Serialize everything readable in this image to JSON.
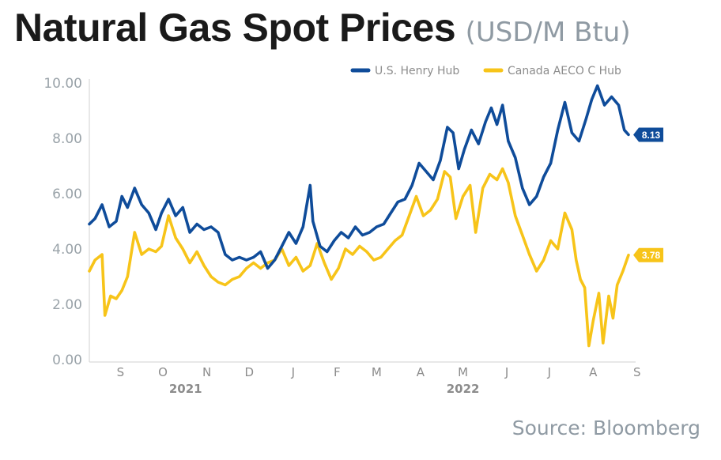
{
  "title": "Natural Gas Spot Prices",
  "subtitle": "(USD/M Btu)",
  "source": "Source: Bloomberg",
  "chart_data": {
    "type": "line",
    "ylim": [
      0,
      10
    ],
    "yticks": [
      "0.00",
      "2.00",
      "4.00",
      "6.00",
      "8.00",
      "10.00"
    ],
    "grid": false,
    "legend_position": "top-right",
    "x_start": "2021-08-24",
    "x_end": "2022-09-14",
    "xticks": [
      {
        "label": "S",
        "date": "2021-09-15"
      },
      {
        "label": "O",
        "date": "2021-10-15"
      },
      {
        "label": "N",
        "date": "2021-11-15"
      },
      {
        "label": "D",
        "date": "2021-12-15"
      },
      {
        "label": "J",
        "date": "2022-01-15"
      },
      {
        "label": "F",
        "date": "2022-02-15"
      },
      {
        "label": "M",
        "date": "2022-03-15"
      },
      {
        "label": "A",
        "date": "2022-04-15"
      },
      {
        "label": "M",
        "date": "2022-05-15"
      },
      {
        "label": "J",
        "date": "2022-06-15"
      },
      {
        "label": "J",
        "date": "2022-07-15"
      },
      {
        "label": "A",
        "date": "2022-08-15"
      },
      {
        "label": "S",
        "date": "2022-09-15"
      }
    ],
    "year_labels": [
      {
        "label": "2021",
        "date": "2021-10-31"
      },
      {
        "label": "2022",
        "date": "2022-05-15"
      }
    ],
    "series": [
      {
        "name": "U.S. Henry Hub",
        "color": "#0f4c9a",
        "end_label": "8.13",
        "points": [
          [
            "2021-08-24",
            4.9
          ],
          [
            "2021-08-28",
            5.1
          ],
          [
            "2021-09-02",
            5.6
          ],
          [
            "2021-09-07",
            4.8
          ],
          [
            "2021-09-12",
            5.0
          ],
          [
            "2021-09-16",
            5.9
          ],
          [
            "2021-09-20",
            5.5
          ],
          [
            "2021-09-25",
            6.2
          ],
          [
            "2021-09-30",
            5.6
          ],
          [
            "2021-10-05",
            5.3
          ],
          [
            "2021-10-10",
            4.7
          ],
          [
            "2021-10-14",
            5.3
          ],
          [
            "2021-10-19",
            5.8
          ],
          [
            "2021-10-24",
            5.2
          ],
          [
            "2021-10-29",
            5.5
          ],
          [
            "2021-11-03",
            4.6
          ],
          [
            "2021-11-08",
            4.9
          ],
          [
            "2021-11-13",
            4.7
          ],
          [
            "2021-11-18",
            4.8
          ],
          [
            "2021-11-23",
            4.6
          ],
          [
            "2021-11-28",
            3.8
          ],
          [
            "2021-12-03",
            3.6
          ],
          [
            "2021-12-08",
            3.7
          ],
          [
            "2021-12-13",
            3.6
          ],
          [
            "2021-12-18",
            3.7
          ],
          [
            "2021-12-23",
            3.9
          ],
          [
            "2021-12-28",
            3.3
          ],
          [
            "2022-01-02",
            3.6
          ],
          [
            "2022-01-07",
            4.1
          ],
          [
            "2022-01-12",
            4.6
          ],
          [
            "2022-01-17",
            4.2
          ],
          [
            "2022-01-22",
            4.8
          ],
          [
            "2022-01-27",
            6.3
          ],
          [
            "2022-01-29",
            5.0
          ],
          [
            "2022-02-03",
            4.1
          ],
          [
            "2022-02-08",
            3.9
          ],
          [
            "2022-02-13",
            4.3
          ],
          [
            "2022-02-18",
            4.6
          ],
          [
            "2022-02-23",
            4.4
          ],
          [
            "2022-02-28",
            4.8
          ],
          [
            "2022-03-05",
            4.5
          ],
          [
            "2022-03-10",
            4.6
          ],
          [
            "2022-03-15",
            4.8
          ],
          [
            "2022-03-20",
            4.9
          ],
          [
            "2022-03-25",
            5.3
          ],
          [
            "2022-03-30",
            5.7
          ],
          [
            "2022-04-04",
            5.8
          ],
          [
            "2022-04-09",
            6.3
          ],
          [
            "2022-04-14",
            7.1
          ],
          [
            "2022-04-19",
            6.8
          ],
          [
            "2022-04-24",
            6.5
          ],
          [
            "2022-04-29",
            7.2
          ],
          [
            "2022-05-04",
            8.4
          ],
          [
            "2022-05-08",
            8.2
          ],
          [
            "2022-05-12",
            6.9
          ],
          [
            "2022-05-16",
            7.6
          ],
          [
            "2022-05-21",
            8.3
          ],
          [
            "2022-05-26",
            7.8
          ],
          [
            "2022-05-31",
            8.6
          ],
          [
            "2022-06-04",
            9.1
          ],
          [
            "2022-06-08",
            8.5
          ],
          [
            "2022-06-12",
            9.2
          ],
          [
            "2022-06-16",
            7.9
          ],
          [
            "2022-06-21",
            7.3
          ],
          [
            "2022-06-26",
            6.2
          ],
          [
            "2022-07-01",
            5.6
          ],
          [
            "2022-07-06",
            5.9
          ],
          [
            "2022-07-11",
            6.6
          ],
          [
            "2022-07-16",
            7.1
          ],
          [
            "2022-07-21",
            8.3
          ],
          [
            "2022-07-26",
            9.3
          ],
          [
            "2022-07-31",
            8.2
          ],
          [
            "2022-08-05",
            7.9
          ],
          [
            "2022-08-10",
            8.7
          ],
          [
            "2022-08-14",
            9.4
          ],
          [
            "2022-08-18",
            9.9
          ],
          [
            "2022-08-23",
            9.2
          ],
          [
            "2022-08-28",
            9.5
          ],
          [
            "2022-09-02",
            9.2
          ],
          [
            "2022-09-06",
            8.3
          ],
          [
            "2022-09-09",
            8.13
          ]
        ]
      },
      {
        "name": "Canada AECO C Hub",
        "color": "#f7c419",
        "end_label": "3.78",
        "points": [
          [
            "2021-08-24",
            3.2
          ],
          [
            "2021-08-28",
            3.6
          ],
          [
            "2021-09-02",
            3.8
          ],
          [
            "2021-09-04",
            1.6
          ],
          [
            "2021-09-08",
            2.3
          ],
          [
            "2021-09-12",
            2.2
          ],
          [
            "2021-09-16",
            2.5
          ],
          [
            "2021-09-20",
            3.0
          ],
          [
            "2021-09-25",
            4.6
          ],
          [
            "2021-09-30",
            3.8
          ],
          [
            "2021-10-05",
            4.0
          ],
          [
            "2021-10-10",
            3.9
          ],
          [
            "2021-10-14",
            4.1
          ],
          [
            "2021-10-19",
            5.2
          ],
          [
            "2021-10-24",
            4.4
          ],
          [
            "2021-10-29",
            4.0
          ],
          [
            "2021-11-03",
            3.5
          ],
          [
            "2021-11-08",
            3.9
          ],
          [
            "2021-11-13",
            3.4
          ],
          [
            "2021-11-18",
            3.0
          ],
          [
            "2021-11-23",
            2.8
          ],
          [
            "2021-11-28",
            2.7
          ],
          [
            "2021-12-03",
            2.9
          ],
          [
            "2021-12-08",
            3.0
          ],
          [
            "2021-12-13",
            3.3
          ],
          [
            "2021-12-18",
            3.5
          ],
          [
            "2021-12-23",
            3.3
          ],
          [
            "2021-12-28",
            3.5
          ],
          [
            "2022-01-02",
            3.6
          ],
          [
            "2022-01-07",
            4.0
          ],
          [
            "2022-01-12",
            3.4
          ],
          [
            "2022-01-17",
            3.7
          ],
          [
            "2022-01-22",
            3.2
          ],
          [
            "2022-01-27",
            3.4
          ],
          [
            "2022-02-01",
            4.2
          ],
          [
            "2022-02-06",
            3.5
          ],
          [
            "2022-02-11",
            2.9
          ],
          [
            "2022-02-16",
            3.3
          ],
          [
            "2022-02-21",
            4.0
          ],
          [
            "2022-02-26",
            3.8
          ],
          [
            "2022-03-03",
            4.1
          ],
          [
            "2022-03-08",
            3.9
          ],
          [
            "2022-03-13",
            3.6
          ],
          [
            "2022-03-18",
            3.7
          ],
          [
            "2022-03-23",
            4.0
          ],
          [
            "2022-03-28",
            4.3
          ],
          [
            "2022-04-02",
            4.5
          ],
          [
            "2022-04-07",
            5.2
          ],
          [
            "2022-04-12",
            5.9
          ],
          [
            "2022-04-17",
            5.2
          ],
          [
            "2022-04-22",
            5.4
          ],
          [
            "2022-04-27",
            5.8
          ],
          [
            "2022-05-02",
            6.8
          ],
          [
            "2022-05-06",
            6.6
          ],
          [
            "2022-05-10",
            5.1
          ],
          [
            "2022-05-15",
            5.9
          ],
          [
            "2022-05-20",
            6.3
          ],
          [
            "2022-05-24",
            4.6
          ],
          [
            "2022-05-29",
            6.2
          ],
          [
            "2022-06-03",
            6.7
          ],
          [
            "2022-06-08",
            6.5
          ],
          [
            "2022-06-12",
            6.9
          ],
          [
            "2022-06-16",
            6.4
          ],
          [
            "2022-06-21",
            5.2
          ],
          [
            "2022-06-26",
            4.5
          ],
          [
            "2022-07-01",
            3.8
          ],
          [
            "2022-07-06",
            3.2
          ],
          [
            "2022-07-11",
            3.6
          ],
          [
            "2022-07-16",
            4.3
          ],
          [
            "2022-07-21",
            4.0
          ],
          [
            "2022-07-26",
            5.3
          ],
          [
            "2022-07-31",
            4.7
          ],
          [
            "2022-08-03",
            3.6
          ],
          [
            "2022-08-06",
            2.9
          ],
          [
            "2022-08-09",
            2.6
          ],
          [
            "2022-08-12",
            0.5
          ],
          [
            "2022-08-15",
            1.4
          ],
          [
            "2022-08-19",
            2.4
          ],
          [
            "2022-08-22",
            0.6
          ],
          [
            "2022-08-26",
            2.3
          ],
          [
            "2022-08-29",
            1.5
          ],
          [
            "2022-09-01",
            2.7
          ],
          [
            "2022-09-05",
            3.2
          ],
          [
            "2022-09-09",
            3.78
          ]
        ]
      }
    ]
  }
}
